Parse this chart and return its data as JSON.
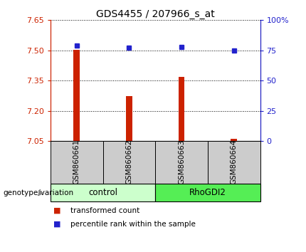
{
  "title": "GDS4455 / 207966_s_at",
  "samples": [
    "GSM860661",
    "GSM860662",
    "GSM860663",
    "GSM860664"
  ],
  "transformed_count": [
    7.503,
    7.272,
    7.37,
    7.062
  ],
  "percentile_rank": [
    79,
    77,
    78,
    75
  ],
  "ylim_left": [
    7.05,
    7.65
  ],
  "ylim_right": [
    0,
    100
  ],
  "yticks_left": [
    7.05,
    7.2,
    7.35,
    7.5,
    7.65
  ],
  "yticks_right": [
    0,
    25,
    50,
    75,
    100
  ],
  "ytick_labels_right": [
    "0",
    "25",
    "50",
    "75",
    "100%"
  ],
  "bar_color": "#cc2200",
  "dot_color": "#2222cc",
  "groups": [
    "control",
    "RhoGDI2"
  ],
  "group_samples": [
    2,
    2
  ],
  "group_colors": [
    "#ccffcc",
    "#55ee55"
  ],
  "group_label": "genotype/variation",
  "label_bar": "transformed count",
  "label_dot": "percentile rank within the sample",
  "tick_fontsize": 8,
  "title_fontsize": 10,
  "axis_left_color": "#cc2200",
  "axis_right_color": "#2222cc",
  "sample_area_color": "#cccccc",
  "baseline": 7.05
}
